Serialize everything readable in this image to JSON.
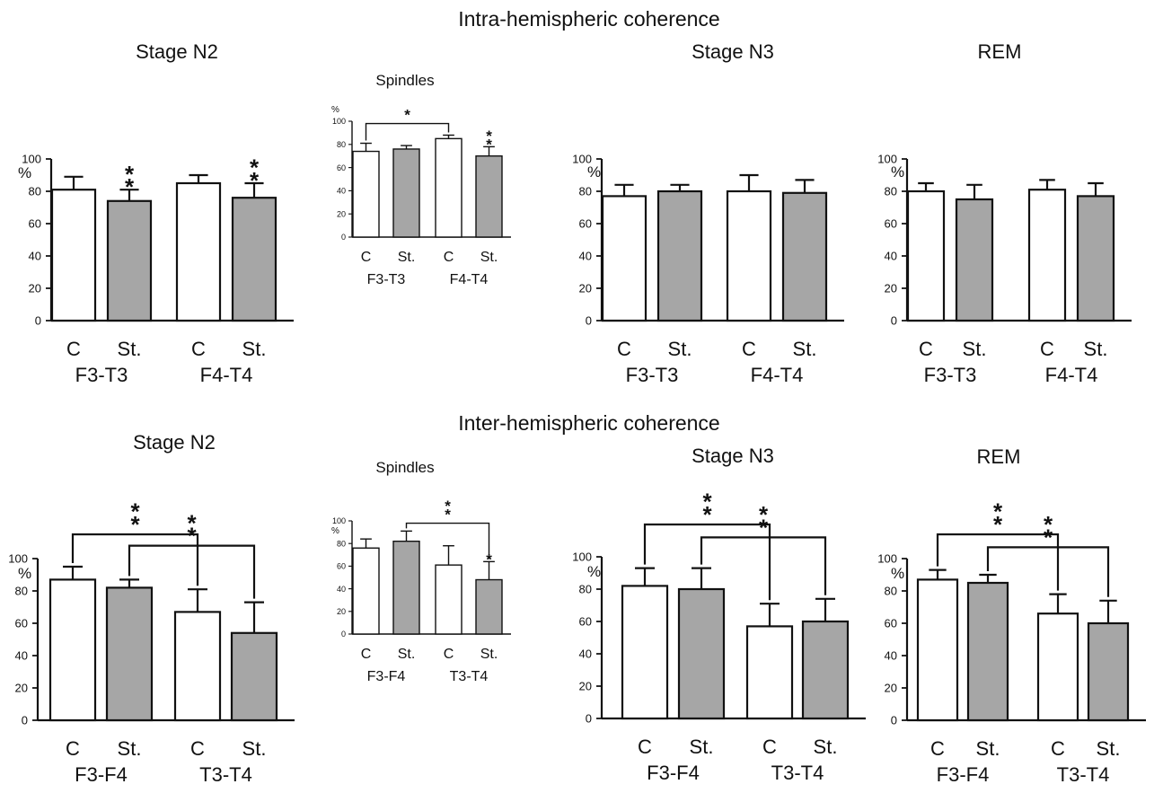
{
  "sections": [
    {
      "title": "Intra-hemispheric coherence"
    },
    {
      "title": "Inter-hemispheric coherence"
    }
  ],
  "chart_data": [
    {
      "panel_title": "Stage N2",
      "type": "bar",
      "section": "Intra-hemispheric coherence",
      "ylabel": "%",
      "ylim": [
        0,
        100
      ],
      "yticks": [
        0,
        20,
        40,
        60,
        80,
        100
      ],
      "groups": [
        {
          "label": "F3-T3",
          "bars": [
            {
              "label": "C",
              "value": 81,
              "error": 8,
              "color": "#ffffff",
              "marker": ""
            },
            {
              "label": "St.",
              "value": 74,
              "error": 7,
              "color": "#a6a6a6",
              "marker": "**"
            }
          ]
        },
        {
          "label": "F4-T4",
          "bars": [
            {
              "label": "C",
              "value": 85,
              "error": 5,
              "color": "#ffffff",
              "marker": ""
            },
            {
              "label": "St.",
              "value": 76,
              "error": 9,
              "color": "#a6a6a6",
              "marker": "**"
            }
          ]
        }
      ],
      "comparisons": []
    },
    {
      "panel_title": "Spindles",
      "type": "bar",
      "section": "Intra-hemispheric coherence",
      "ylabel": "%",
      "ylim": [
        0,
        100
      ],
      "yticks": [
        0,
        20,
        40,
        60,
        80,
        100
      ],
      "groups": [
        {
          "label": "F3-T3",
          "bars": [
            {
              "label": "C",
              "value": 74,
              "error": 7,
              "color": "#ffffff",
              "marker": ""
            },
            {
              "label": "St.",
              "value": 76,
              "error": 3,
              "color": "#a6a6a6",
              "marker": ""
            }
          ]
        },
        {
          "label": "F4-T4",
          "bars": [
            {
              "label": "C",
              "value": 85,
              "error": 3,
              "color": "#ffffff",
              "marker": ""
            },
            {
              "label": "St.",
              "value": 70,
              "error": 8,
              "color": "#a6a6a6",
              "marker": "**"
            }
          ]
        }
      ],
      "comparisons": [
        {
          "from": 0,
          "to": 2,
          "level": 98,
          "marker": "*"
        }
      ]
    },
    {
      "panel_title": "Stage N3",
      "type": "bar",
      "section": "Intra-hemispheric coherence",
      "ylabel": "%",
      "ylim": [
        0,
        100
      ],
      "yticks": [
        0,
        20,
        40,
        60,
        80,
        100
      ],
      "groups": [
        {
          "label": "F3-T3",
          "bars": [
            {
              "label": "C",
              "value": 77,
              "error": 7,
              "color": "#ffffff",
              "marker": ""
            },
            {
              "label": "St.",
              "value": 80,
              "error": 4,
              "color": "#a6a6a6",
              "marker": ""
            }
          ]
        },
        {
          "label": "F4-T4",
          "bars": [
            {
              "label": "C",
              "value": 80,
              "error": 10,
              "color": "#ffffff",
              "marker": ""
            },
            {
              "label": "St.",
              "value": 79,
              "error": 8,
              "color": "#a6a6a6",
              "marker": ""
            }
          ]
        }
      ],
      "comparisons": []
    },
    {
      "panel_title": "REM",
      "type": "bar",
      "section": "Intra-hemispheric coherence",
      "ylabel": "%",
      "ylim": [
        0,
        100
      ],
      "yticks": [
        0,
        20,
        40,
        60,
        80,
        100
      ],
      "groups": [
        {
          "label": "F3-T3",
          "bars": [
            {
              "label": "C",
              "value": 80,
              "error": 5,
              "color": "#ffffff",
              "marker": ""
            },
            {
              "label": "St.",
              "value": 75,
              "error": 9,
              "color": "#a6a6a6",
              "marker": ""
            }
          ]
        },
        {
          "label": "F4-T4",
          "bars": [
            {
              "label": "C",
              "value": 81,
              "error": 6,
              "color": "#ffffff",
              "marker": ""
            },
            {
              "label": "St.",
              "value": 77,
              "error": 8,
              "color": "#a6a6a6",
              "marker": ""
            }
          ]
        }
      ],
      "comparisons": []
    },
    {
      "panel_title": "Stage N2",
      "type": "bar",
      "section": "Inter-hemispheric coherence",
      "ylabel": "%",
      "ylim": [
        0,
        100
      ],
      "yticks": [
        0,
        20,
        40,
        60,
        80,
        100
      ],
      "groups": [
        {
          "label": "F3-F4",
          "bars": [
            {
              "label": "C",
              "value": 87,
              "error": 8,
              "color": "#ffffff",
              "marker": ""
            },
            {
              "label": "St.",
              "value": 82,
              "error": 5,
              "color": "#a6a6a6",
              "marker": ""
            }
          ]
        },
        {
          "label": "T3-T4",
          "bars": [
            {
              "label": "C",
              "value": 67,
              "error": 14,
              "color": "#ffffff",
              "marker": ""
            },
            {
              "label": "St.",
              "value": 54,
              "error": 19,
              "color": "#a6a6a6",
              "marker": ""
            }
          ]
        }
      ],
      "comparisons": [
        {
          "from": 0,
          "to": 2,
          "level": 115,
          "marker": "**"
        },
        {
          "from": 1,
          "to": 3,
          "level": 108,
          "marker": "**"
        }
      ]
    },
    {
      "panel_title": "Spindles",
      "type": "bar",
      "section": "Inter-hemispheric coherence",
      "ylabel": "%",
      "ylim": [
        0,
        100
      ],
      "yticks": [
        0,
        20,
        40,
        60,
        80,
        100
      ],
      "groups": [
        {
          "label": "F3-F4",
          "bars": [
            {
              "label": "C",
              "value": 76,
              "error": 8,
              "color": "#ffffff",
              "marker": ""
            },
            {
              "label": "St.",
              "value": 82,
              "error": 9,
              "color": "#a6a6a6",
              "marker": ""
            }
          ]
        },
        {
          "label": "T3-T4",
          "bars": [
            {
              "label": "C",
              "value": 61,
              "error": 17,
              "color": "#ffffff",
              "marker": ""
            },
            {
              "label": "St.",
              "value": 48,
              "error": 16,
              "color": "#a6a6a6",
              "marker": "*"
            }
          ]
        }
      ],
      "comparisons": [
        {
          "from": 1,
          "to": 3,
          "level": 98,
          "marker": "**"
        }
      ]
    },
    {
      "panel_title": "Stage N3",
      "type": "bar",
      "section": "Inter-hemispheric coherence",
      "ylabel": "%",
      "ylim": [
        0,
        100
      ],
      "yticks": [
        0,
        20,
        40,
        60,
        80,
        100
      ],
      "groups": [
        {
          "label": "F3-F4",
          "bars": [
            {
              "label": "C",
              "value": 82,
              "error": 11,
              "color": "#ffffff",
              "marker": ""
            },
            {
              "label": "St.",
              "value": 80,
              "error": 13,
              "color": "#a6a6a6",
              "marker": ""
            }
          ]
        },
        {
          "label": "T3-T4",
          "bars": [
            {
              "label": "C",
              "value": 57,
              "error": 14,
              "color": "#ffffff",
              "marker": ""
            },
            {
              "label": "St.",
              "value": 60,
              "error": 14,
              "color": "#a6a6a6",
              "marker": ""
            }
          ]
        }
      ],
      "comparisons": [
        {
          "from": 0,
          "to": 2,
          "level": 120,
          "marker": "**"
        },
        {
          "from": 1,
          "to": 3,
          "level": 112,
          "marker": "**"
        }
      ]
    },
    {
      "panel_title": "REM",
      "type": "bar",
      "section": "Inter-hemispheric coherence",
      "ylabel": "%",
      "ylim": [
        0,
        100
      ],
      "yticks": [
        0,
        20,
        40,
        60,
        80,
        100
      ],
      "groups": [
        {
          "label": "F3-F4",
          "bars": [
            {
              "label": "C",
              "value": 87,
              "error": 6,
              "color": "#ffffff",
              "marker": ""
            },
            {
              "label": "St.",
              "value": 85,
              "error": 5,
              "color": "#a6a6a6",
              "marker": ""
            }
          ]
        },
        {
          "label": "T3-T4",
          "bars": [
            {
              "label": "C",
              "value": 66,
              "error": 12,
              "color": "#ffffff",
              "marker": ""
            },
            {
              "label": "St.",
              "value": 60,
              "error": 14,
              "color": "#a6a6a6",
              "marker": ""
            }
          ]
        }
      ],
      "comparisons": [
        {
          "from": 0,
          "to": 2,
          "level": 115,
          "marker": "**"
        },
        {
          "from": 1,
          "to": 3,
          "level": 107,
          "marker": "**"
        }
      ]
    }
  ]
}
